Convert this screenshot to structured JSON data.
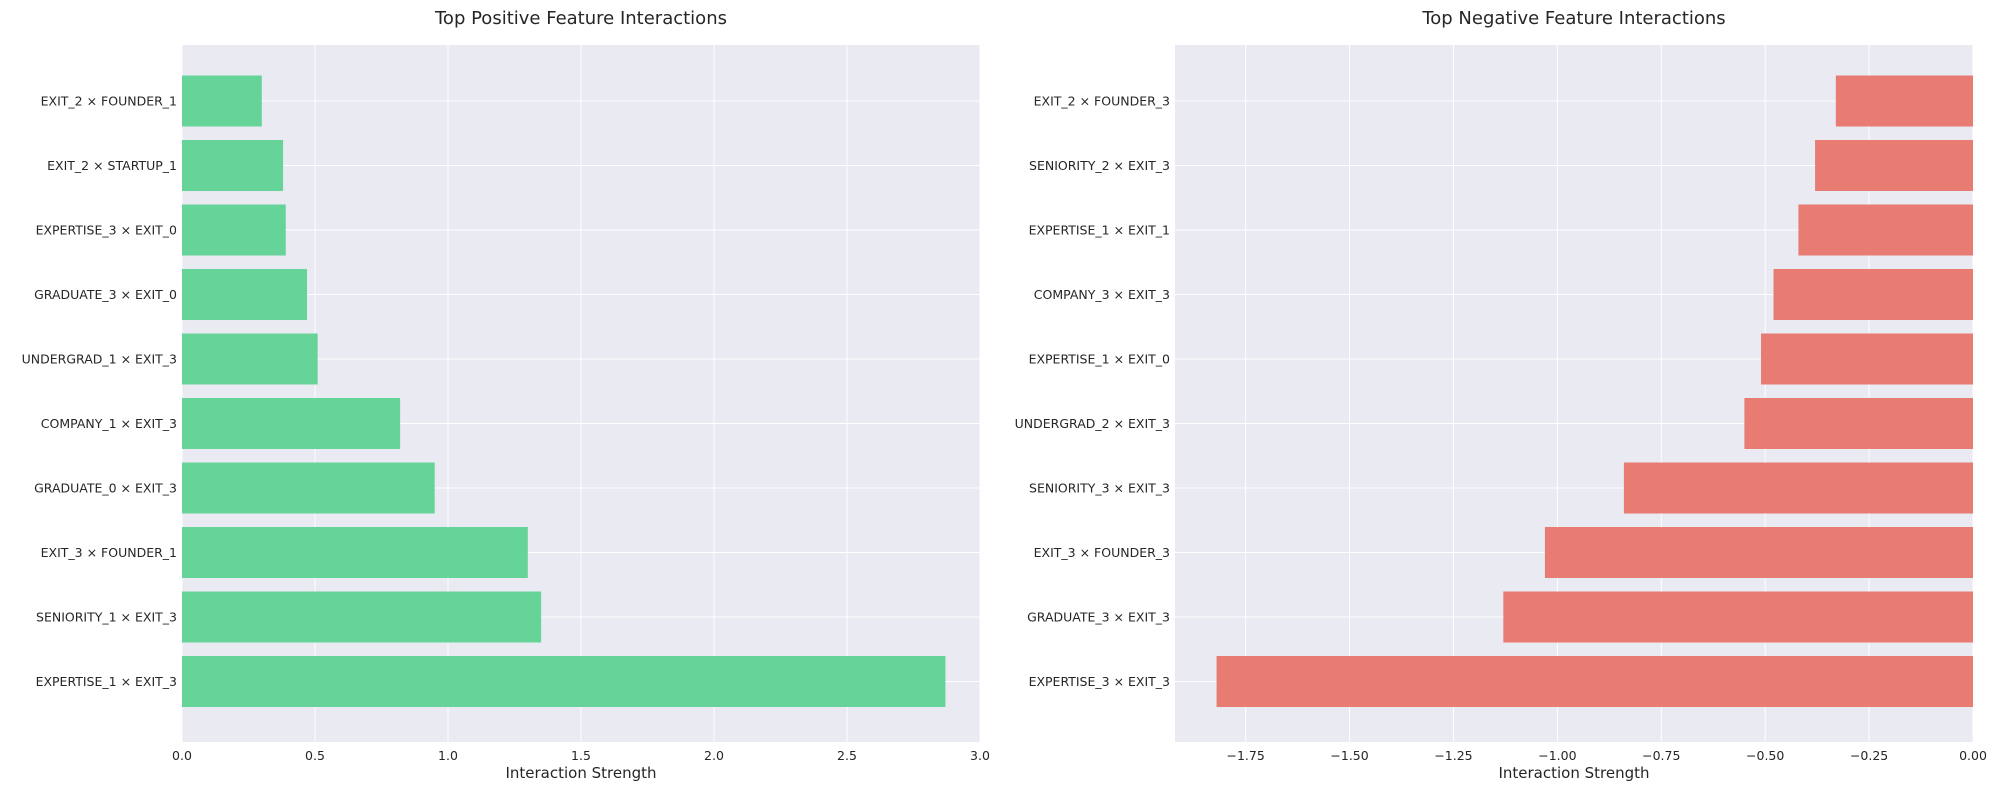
{
  "chart_data": [
    {
      "type": "bar",
      "orientation": "horizontal",
      "title": "Top Positive Feature Interactions",
      "xlabel": "Interaction Strength",
      "ylabel": "",
      "xlim": [
        0,
        3.0
      ],
      "xticks": [
        0.0,
        0.5,
        1.0,
        1.5,
        2.0,
        2.5,
        3.0
      ],
      "xtick_labels": [
        "0.0",
        "0.5",
        "1.0",
        "1.5",
        "2.0",
        "2.5",
        "3.0"
      ],
      "bar_color": "#66d398",
      "grid": true,
      "categories": [
        "EXIT_2 × FOUNDER_1",
        "EXIT_2 × STARTUP_1",
        "EXPERTISE_3 × EXIT_0",
        "GRADUATE_3 × EXIT_0",
        "UNDERGRAD_1 × EXIT_3",
        "COMPANY_1 × EXIT_3",
        "GRADUATE_0 × EXIT_3",
        "EXIT_3 × FOUNDER_1",
        "SENIORITY_1 × EXIT_3",
        "EXPERTISE_1 × EXIT_3"
      ],
      "values": [
        0.3,
        0.38,
        0.39,
        0.47,
        0.51,
        0.82,
        0.95,
        1.3,
        1.35,
        2.87
      ]
    },
    {
      "type": "bar",
      "orientation": "horizontal",
      "title": "Top Negative Feature Interactions",
      "xlabel": "Interaction Strength",
      "ylabel": "",
      "xlim": [
        -1.92,
        0.0
      ],
      "xticks": [
        -1.75,
        -1.5,
        -1.25,
        -1.0,
        -0.75,
        -0.5,
        -0.25,
        0.0
      ],
      "xtick_labels": [
        "−1.75",
        "−1.50",
        "−1.25",
        "−1.00",
        "−0.75",
        "−0.50",
        "−0.25",
        "0.00"
      ],
      "bar_color": "#e87b72",
      "grid": true,
      "categories": [
        "EXIT_2 × FOUNDER_3",
        "SENIORITY_2 × EXIT_3",
        "EXPERTISE_1 × EXIT_1",
        "COMPANY_3 × EXIT_3",
        "EXPERTISE_1 × EXIT_0",
        "UNDERGRAD_2 × EXIT_3",
        "SENIORITY_3 × EXIT_3",
        "EXIT_3 × FOUNDER_3",
        "GRADUATE_3 × EXIT_3",
        "EXPERTISE_3 × EXIT_3"
      ],
      "values": [
        -0.33,
        -0.38,
        -0.42,
        -0.48,
        -0.51,
        -0.55,
        -0.84,
        -1.03,
        -1.13,
        -1.82
      ]
    }
  ]
}
